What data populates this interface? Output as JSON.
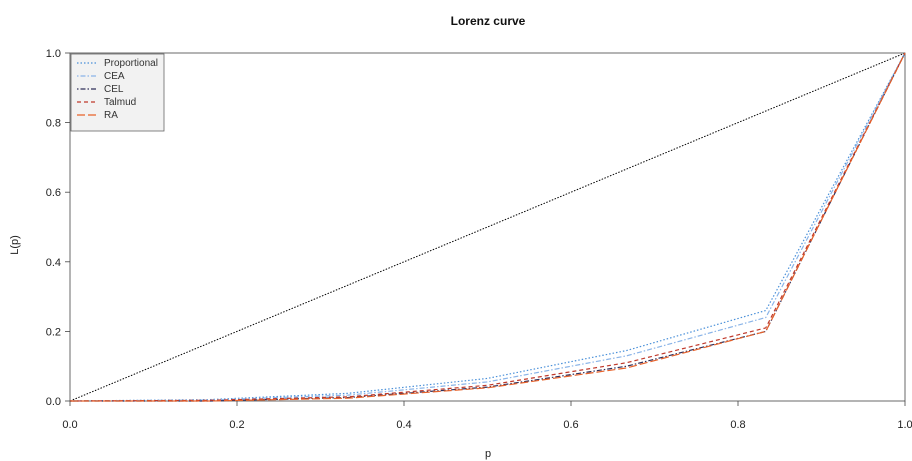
{
  "chart_data": {
    "type": "line",
    "title": "Lorenz curve",
    "xlabel": "p",
    "ylabel": "L(p)",
    "xlim": [
      0,
      1
    ],
    "ylim": [
      0,
      1
    ],
    "x_ticks": [
      "0.0",
      "0.2",
      "0.4",
      "0.6",
      "0.8",
      "1.0"
    ],
    "y_ticks": [
      "0.0",
      "0.2",
      "0.4",
      "0.6",
      "0.8",
      "1.0"
    ],
    "grid": false,
    "legend_position": "top-left",
    "x": [
      0,
      0.1667,
      0.3333,
      0.5,
      0.6667,
      0.8333,
      1
    ],
    "reference_line": {
      "x": [
        0,
        1
      ],
      "y": [
        0,
        1
      ],
      "color": "#000000"
    },
    "series": [
      {
        "name": "Proportional",
        "color": "#4a90d9",
        "dash": "dotted",
        "values": [
          0,
          0.004,
          0.022,
          0.065,
          0.145,
          0.26,
          1
        ]
      },
      {
        "name": "CEA",
        "color": "#8ab4e8",
        "dash": "dotdash",
        "values": [
          0,
          0.003,
          0.017,
          0.055,
          0.13,
          0.24,
          1
        ]
      },
      {
        "name": "CEL",
        "color": "#2f2f5a",
        "dash": "dotdash",
        "values": [
          0,
          0.0,
          0.01,
          0.04,
          0.1,
          0.2,
          1
        ]
      },
      {
        "name": "Talmud",
        "color": "#c0392b",
        "dash": "dashed",
        "values": [
          0,
          0.002,
          0.012,
          0.045,
          0.11,
          0.21,
          1
        ]
      },
      {
        "name": "RA",
        "color": "#e8622a",
        "dash": "longdash",
        "values": [
          0,
          0.0,
          0.008,
          0.038,
          0.095,
          0.2,
          1
        ]
      }
    ]
  }
}
